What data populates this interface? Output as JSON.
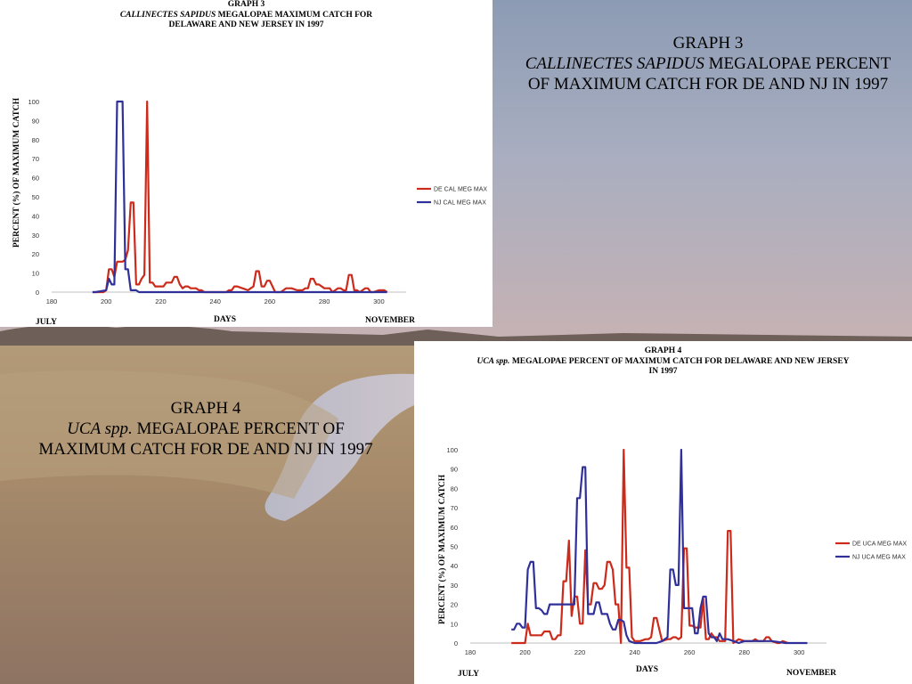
{
  "slide": {
    "caption3": {
      "line1": "GRAPH 3",
      "species": "CALLINECTES SAPIDUS",
      "rest": " MEGALOPAE PERCENT OF MAXIMUM CATCH FOR DE AND NJ IN 1997"
    },
    "caption4": {
      "line1": "GRAPH 4",
      "species": "UCA spp.",
      "rest": " MEGALOPAE PERCENT OF MAXIMUM CATCH FOR DE AND NJ IN 1997"
    }
  },
  "graph3": {
    "title1": "GRAPH 3",
    "species": "CALLINECTES SAPIDUS",
    "title2": " MEGALOPAE MAXIMUM CATCH FOR",
    "title3": "DELAWARE AND NEW JERSEY IN 1997",
    "ylabel": "PERCENT (%) OF MAXIMUM CATCH",
    "xlabel": "DAYS",
    "left_label": "JULY",
    "right_label": "NOVEMBER"
  },
  "graph4": {
    "title1": "GRAPH 4",
    "species": "UCA spp.",
    "title2": " MEGALOPAE PERCENT OF  MAXIMUM CATCH FOR DELAWARE AND NEW JERSEY",
    "title3": "IN 1997",
    "ylabel": "PERCENT (%) OF MAXIMUM CATCH",
    "xlabel": "DAYS",
    "left_label": "JULY",
    "right_label": "NOVEMBER"
  },
  "chart_data": [
    {
      "type": "line",
      "xlim": [
        180,
        310
      ],
      "ylim": [
        0,
        100
      ],
      "xticks": [
        180,
        200,
        220,
        240,
        260,
        280,
        300
      ],
      "yticks": [
        0,
        10,
        20,
        30,
        40,
        50,
        60,
        70,
        80,
        90,
        100
      ],
      "grid": false,
      "legend_position": "right",
      "series": [
        {
          "name": "DE CAL MEG MAX",
          "color": "#cc2a1a",
          "x": [
            195,
            199,
            200,
            201,
            202,
            203,
            204,
            205,
            206,
            207,
            208,
            209,
            210,
            211,
            212,
            213,
            214,
            215,
            216,
            217,
            218,
            219,
            220,
            221,
            222,
            223,
            224,
            225,
            226,
            227,
            228,
            229,
            230,
            231,
            232,
            233,
            234,
            235,
            236,
            240,
            244,
            245,
            246,
            247,
            248,
            250,
            252,
            253,
            254,
            255,
            256,
            257,
            258,
            259,
            260,
            262,
            264,
            265,
            266,
            268,
            270,
            272,
            273,
            274,
            275,
            276,
            277,
            278,
            280,
            282,
            283,
            284,
            285,
            286,
            287,
            288,
            289,
            290,
            291,
            292,
            293,
            294,
            295,
            296,
            297,
            298,
            300,
            302,
            303
          ],
          "y": [
            0,
            0,
            1,
            12,
            12,
            8,
            16,
            16,
            16,
            17,
            22,
            47,
            47,
            4,
            4,
            7,
            9,
            100,
            5,
            5,
            3,
            3,
            3,
            3,
            5,
            5,
            5,
            8,
            8,
            4,
            2,
            3,
            3,
            2,
            2,
            2,
            1,
            1,
            0,
            0,
            0,
            1,
            1,
            3,
            3,
            2,
            1,
            2,
            3,
            11,
            11,
            3,
            3,
            6,
            6,
            0,
            0,
            1,
            2,
            2,
            1,
            1,
            2,
            2,
            7,
            7,
            4,
            4,
            2,
            2,
            0,
            1,
            2,
            2,
            1,
            1,
            9,
            9,
            1,
            1,
            0,
            1,
            2,
            2,
            0,
            0,
            1,
            1,
            0
          ]
        },
        {
          "name": "NJ CAL MEG MAX",
          "color": "#30309a",
          "x": [
            195,
            196,
            200,
            201,
            202,
            203,
            204,
            205,
            206,
            207,
            208,
            209,
            210,
            211,
            212,
            214,
            216,
            220,
            230,
            240,
            250,
            260,
            270,
            280,
            290,
            300,
            302,
            303
          ],
          "y": [
            0,
            0,
            1,
            7,
            4,
            4,
            100,
            100,
            100,
            12,
            12,
            1,
            1,
            1,
            0,
            0,
            0,
            0,
            0,
            0,
            0,
            0,
            0,
            0,
            0,
            0,
            0,
            0
          ]
        }
      ]
    },
    {
      "type": "line",
      "xlim": [
        180,
        310
      ],
      "ylim": [
        0,
        100
      ],
      "xticks": [
        180,
        200,
        220,
        240,
        260,
        280,
        300
      ],
      "yticks": [
        0,
        10,
        20,
        30,
        40,
        50,
        60,
        70,
        80,
        90,
        100
      ],
      "grid": false,
      "legend_position": "right",
      "series": [
        {
          "name": "DE UCA MEG MAX",
          "color": "#cc2a1a",
          "x": [
            195,
            199,
            200,
            201,
            202,
            203,
            204,
            205,
            206,
            207,
            208,
            209,
            210,
            211,
            212,
            213,
            214,
            215,
            216,
            217,
            218,
            219,
            220,
            221,
            222,
            223,
            224,
            225,
            226,
            227,
            228,
            229,
            230,
            231,
            232,
            233,
            234,
            235,
            236,
            237,
            238,
            239,
            240,
            242,
            244,
            245,
            246,
            247,
            248,
            250,
            252,
            253,
            254,
            255,
            256,
            257,
            258,
            259,
            260,
            261,
            262,
            263,
            264,
            265,
            266,
            267,
            268,
            269,
            270,
            271,
            272,
            273,
            274,
            275,
            276,
            277,
            278,
            280,
            283,
            284,
            285,
            286,
            287,
            288,
            289,
            290,
            292,
            293,
            294,
            296
          ],
          "y": [
            0,
            0,
            0,
            10,
            4,
            4,
            4,
            4,
            4,
            6,
            6,
            6,
            2,
            2,
            4,
            4,
            32,
            32,
            53,
            14,
            24,
            24,
            10,
            10,
            48,
            20,
            20,
            31,
            31,
            28,
            28,
            30,
            42,
            42,
            38,
            20,
            20,
            0,
            100,
            39,
            39,
            3,
            1,
            1,
            2,
            2,
            3,
            13,
            13,
            1,
            2,
            2,
            3,
            3,
            2,
            3,
            49,
            49,
            9,
            9,
            8,
            8,
            8,
            23,
            2,
            2,
            5,
            3,
            3,
            1,
            1,
            1,
            58,
            58,
            0,
            1,
            2,
            1,
            1,
            2,
            1,
            1,
            1,
            3,
            3,
            1,
            0,
            0,
            1,
            0
          ]
        },
        {
          "name": "NJ UCA MEG MAX",
          "color": "#30309a",
          "x": [
            195,
            196,
            197,
            198,
            199,
            200,
            201,
            202,
            203,
            204,
            205,
            206,
            207,
            208,
            209,
            210,
            211,
            212,
            213,
            214,
            215,
            216,
            217,
            218,
            219,
            220,
            221,
            222,
            223,
            224,
            225,
            226,
            227,
            228,
            229,
            230,
            231,
            232,
            233,
            234,
            235,
            236,
            237,
            238,
            240,
            242,
            244,
            246,
            248,
            250,
            252,
            253,
            254,
            255,
            256,
            257,
            258,
            259,
            260,
            261,
            262,
            263,
            264,
            265,
            266,
            267,
            268,
            269,
            270,
            271,
            272,
            274,
            276,
            278,
            280,
            285,
            290,
            295,
            300,
            303
          ],
          "y": [
            7,
            7,
            10,
            10,
            8,
            8,
            38,
            42,
            42,
            18,
            18,
            17,
            15,
            15,
            20,
            20,
            20,
            20,
            20,
            20,
            20,
            20,
            20,
            20,
            75,
            75,
            91,
            91,
            15,
            15,
            15,
            21,
            21,
            15,
            15,
            15,
            10,
            7,
            7,
            12,
            12,
            11,
            4,
            1,
            0,
            0,
            0,
            0,
            0,
            1,
            3,
            38,
            38,
            30,
            30,
            100,
            18,
            18,
            18,
            18,
            5,
            5,
            18,
            24,
            24,
            5,
            3,
            3,
            1,
            5,
            2,
            2,
            1,
            0,
            1,
            1,
            1,
            0,
            0,
            0
          ]
        }
      ]
    }
  ]
}
